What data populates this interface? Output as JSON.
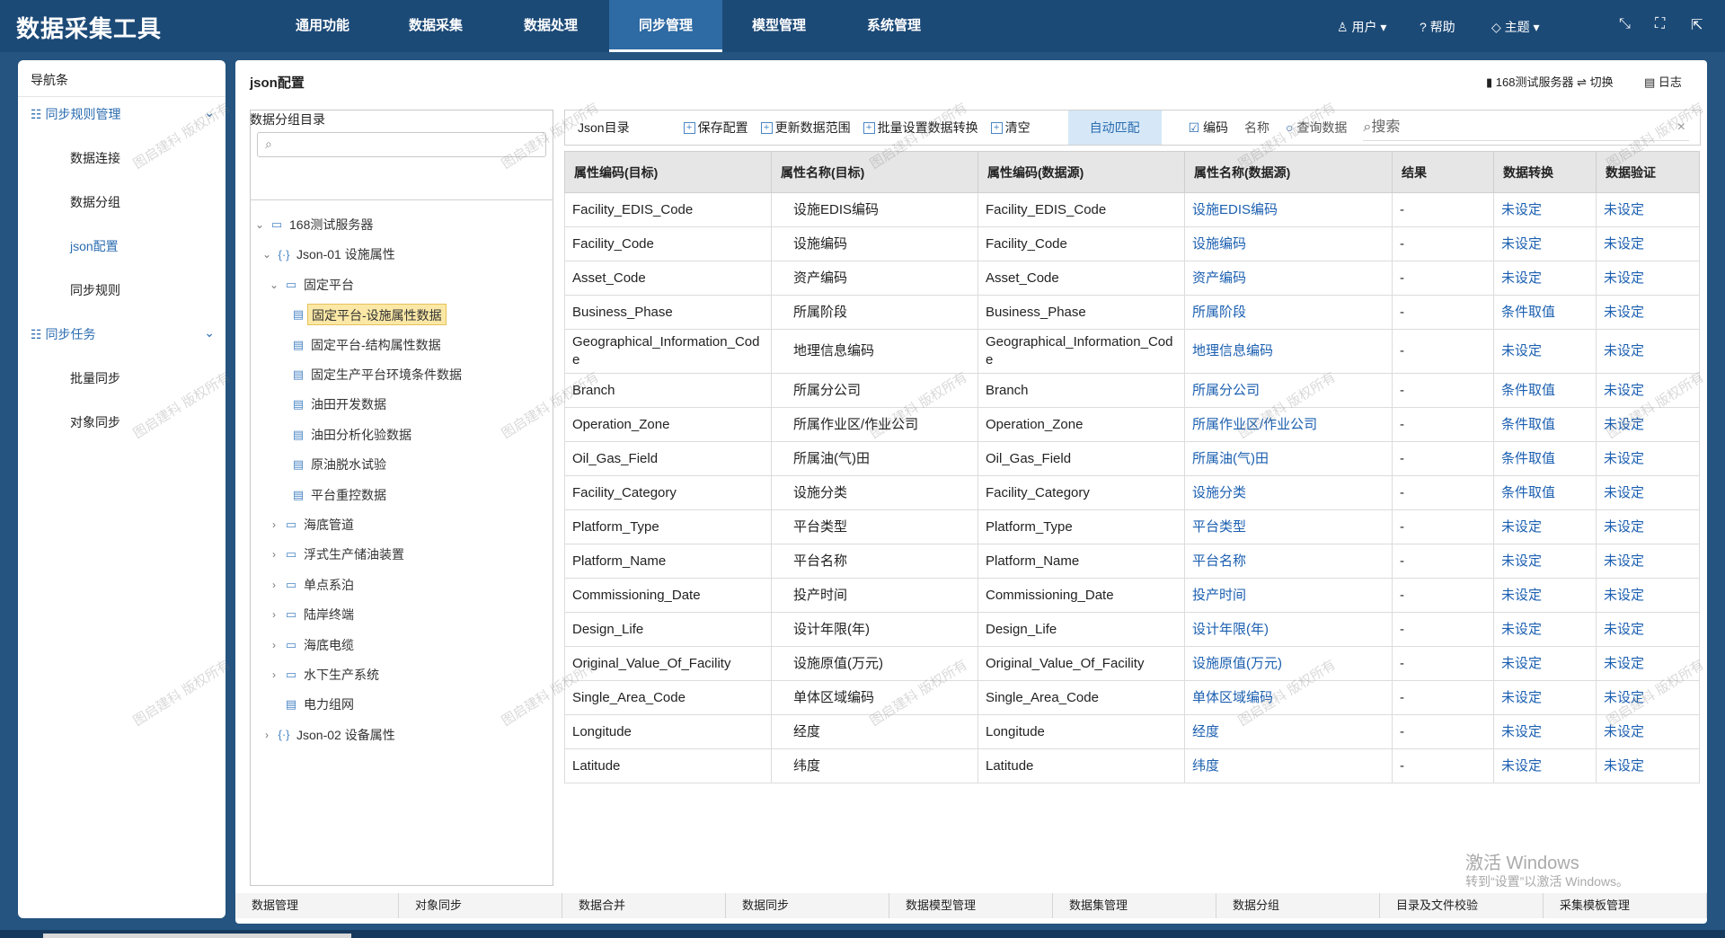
{
  "header": {
    "app_title": "数据采集工具",
    "menu": [
      "通用功能",
      "数据采集",
      "数据处理",
      "同步管理",
      "模型管理",
      "系统管理"
    ],
    "user_menu": [
      "用户",
      "帮助",
      "主题"
    ]
  },
  "sidebar": {
    "title": "导航条",
    "groups": [
      {
        "label": "同步规则管理",
        "items": [
          "数据连接",
          "数据分组",
          "json配置",
          "同步规则"
        ]
      },
      {
        "label": "同步任务",
        "items": [
          "批量同步",
          "对象同步"
        ]
      }
    ]
  },
  "main": {
    "title": "json配置",
    "server": "168测试服务器",
    "switch": "切换",
    "log": "日志"
  },
  "tree": {
    "title": "数据分组目录",
    "nodes": [
      {
        "label": "168测试服务器",
        "level": 0,
        "kind": "folder",
        "toggle": "open"
      },
      {
        "label": "Json-01 设施属性",
        "level": 1,
        "kind": "json",
        "toggle": "open"
      },
      {
        "label": "固定平台",
        "level": 2,
        "kind": "folder",
        "toggle": "open"
      },
      {
        "label": "固定平台-设施属性数据",
        "level": 3,
        "kind": "file",
        "selected": true
      },
      {
        "label": "固定平台-结构属性数据",
        "level": 3,
        "kind": "file"
      },
      {
        "label": "固定生产平台环境条件数据",
        "level": 3,
        "kind": "file"
      },
      {
        "label": "油田开发数据",
        "level": 3,
        "kind": "file"
      },
      {
        "label": "油田分析化验数据",
        "level": 3,
        "kind": "file"
      },
      {
        "label": "原油脱水试验",
        "level": 3,
        "kind": "file"
      },
      {
        "label": "平台重控数据",
        "level": 3,
        "kind": "file"
      },
      {
        "label": "海底管道",
        "level": 2,
        "kind": "folder",
        "toggle": "closed"
      },
      {
        "label": "浮式生产储油装置",
        "level": 2,
        "kind": "folder",
        "toggle": "closed"
      },
      {
        "label": "单点系泊",
        "level": 2,
        "kind": "folder",
        "toggle": "closed"
      },
      {
        "label": "陆岸终端",
        "level": 2,
        "kind": "folder",
        "toggle": "closed"
      },
      {
        "label": "海底电缆",
        "level": 2,
        "kind": "folder",
        "toggle": "closed"
      },
      {
        "label": "水下生产系统",
        "level": 2,
        "kind": "folder",
        "toggle": "closed"
      },
      {
        "label": "电力组网",
        "level": 2,
        "kind": "file"
      },
      {
        "label": "Json-02 设备属性",
        "level": 1,
        "kind": "json",
        "toggle": "closed"
      }
    ]
  },
  "toolbar": {
    "label": "Json目录",
    "buttons": [
      "保存配置",
      "更新数据范围",
      "批量设置数据转换",
      "清空"
    ],
    "auto_match": "自动匹配",
    "options": [
      "编码",
      "名称",
      "查询数据"
    ],
    "search_placeholder": "搜索"
  },
  "table": {
    "columns": [
      "属性编码(目标)",
      "属性名称(目标)",
      "属性编码(数据源)",
      "属性名称(数据源)",
      "结果",
      "数据转换",
      "数据验证"
    ],
    "rows": [
      [
        "Facility_EDIS_Code",
        "设施EDIS编码",
        "Facility_EDIS_Code",
        "设施EDIS编码",
        "-",
        "未设定",
        "未设定"
      ],
      [
        "Facility_Code",
        "设施编码",
        "Facility_Code",
        "设施编码",
        "-",
        "未设定",
        "未设定"
      ],
      [
        "Asset_Code",
        "资产编码",
        "Asset_Code",
        "资产编码",
        "-",
        "未设定",
        "未设定"
      ],
      [
        "Business_Phase",
        "所属阶段",
        "Business_Phase",
        "所属阶段",
        "-",
        "条件取值",
        "未设定"
      ],
      [
        "Geographical_Information_Code",
        "地理信息编码",
        "Geographical_Information_Code",
        "地理信息编码",
        "-",
        "未设定",
        "未设定"
      ],
      [
        "Branch",
        "所属分公司",
        "Branch",
        "所属分公司",
        "-",
        "条件取值",
        "未设定"
      ],
      [
        "Operation_Zone",
        "所属作业区/作业公司",
        "Operation_Zone",
        "所属作业区/作业公司",
        "-",
        "条件取值",
        "未设定"
      ],
      [
        "Oil_Gas_Field",
        "所属油(气)田",
        "Oil_Gas_Field",
        "所属油(气)田",
        "-",
        "条件取值",
        "未设定"
      ],
      [
        "Facility_Category",
        "设施分类",
        "Facility_Category",
        "设施分类",
        "-",
        "条件取值",
        "未设定"
      ],
      [
        "Platform_Type",
        "平台类型",
        "Platform_Type",
        "平台类型",
        "-",
        "未设定",
        "未设定"
      ],
      [
        "Platform_Name",
        "平台名称",
        "Platform_Name",
        "平台名称",
        "-",
        "未设定",
        "未设定"
      ],
      [
        "Commissioning_Date",
        "投产时间",
        "Commissioning_Date",
        "投产时间",
        "-",
        "未设定",
        "未设定"
      ],
      [
        "Design_Life",
        "设计年限(年)",
        "Design_Life",
        "设计年限(年)",
        "-",
        "未设定",
        "未设定"
      ],
      [
        "Original_Value_Of_Facility",
        "设施原值(万元)",
        "Original_Value_Of_Facility",
        "设施原值(万元)",
        "-",
        "未设定",
        "未设定"
      ],
      [
        "Single_Area_Code",
        "单体区域编码",
        "Single_Area_Code",
        "单体区域编码",
        "-",
        "未设定",
        "未设定"
      ],
      [
        "Longitude",
        "经度",
        "Longitude",
        "经度",
        "-",
        "未设定",
        "未设定"
      ],
      [
        "Latitude",
        "纬度",
        "Latitude",
        "纬度",
        "-",
        "未设定",
        "未设定"
      ]
    ]
  },
  "footer_tabs": [
    "数据管理",
    "对象同步",
    "数据合并",
    "数据同步",
    "数据模型管理",
    "数据集管理",
    "数据分组",
    "目录及文件校验",
    "采集模板管理"
  ],
  "watermark": "图启建科 版权所有",
  "activation": {
    "title": "激活 Windows",
    "hint": "转到“设置”以激活 Windows。"
  }
}
